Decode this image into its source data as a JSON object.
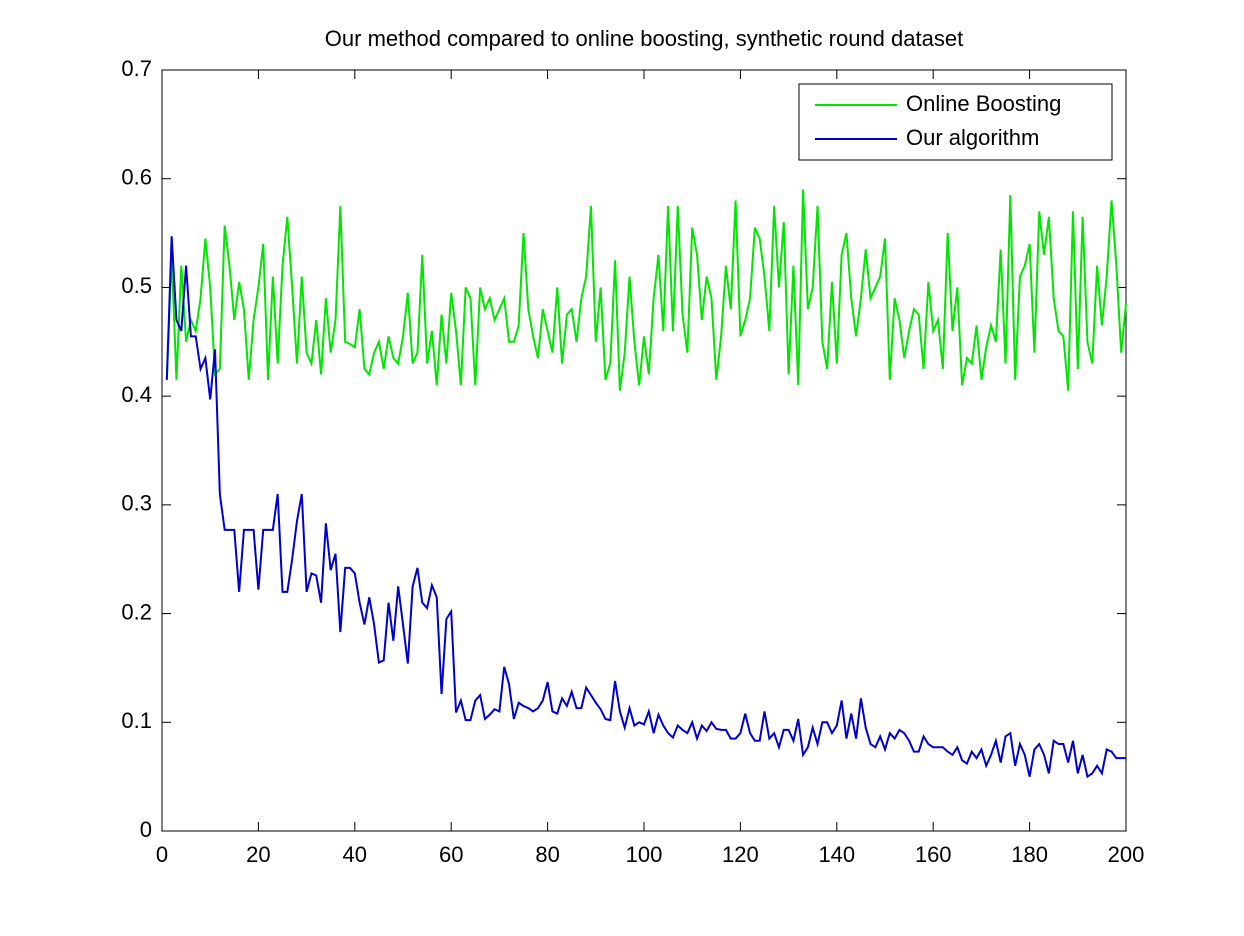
{
  "chart_data": {
    "type": "line",
    "title": "Our method compared to online boosting, synthetic round dataset",
    "x": [
      1,
      2,
      3,
      4,
      5,
      6,
      7,
      8,
      9,
      10,
      11,
      12,
      13,
      14,
      15,
      16,
      17,
      18,
      19,
      20,
      21,
      22,
      23,
      24,
      25,
      26,
      27,
      28,
      29,
      30,
      31,
      32,
      33,
      34,
      35,
      36,
      37,
      38,
      39,
      40,
      41,
      42,
      43,
      44,
      45,
      46,
      47,
      48,
      49,
      50,
      51,
      52,
      53,
      54,
      55,
      56,
      57,
      58,
      59,
      60,
      61,
      62,
      63,
      64,
      65,
      66,
      67,
      68,
      69,
      70,
      71,
      72,
      73,
      74,
      75,
      76,
      77,
      78,
      79,
      80,
      81,
      82,
      83,
      84,
      85,
      86,
      87,
      88,
      89,
      90,
      91,
      92,
      93,
      94,
      95,
      96,
      97,
      98,
      99,
      100,
      101,
      102,
      103,
      104,
      105,
      106,
      107,
      108,
      109,
      110,
      111,
      112,
      113,
      114,
      115,
      116,
      117,
      118,
      119,
      120,
      121,
      122,
      123,
      124,
      125,
      126,
      127,
      128,
      129,
      130,
      131,
      132,
      133,
      134,
      135,
      136,
      137,
      138,
      139,
      140,
      141,
      142,
      143,
      144,
      145,
      146,
      147,
      148,
      149,
      150,
      151,
      152,
      153,
      154,
      155,
      156,
      157,
      158,
      159,
      160,
      161,
      162,
      163,
      164,
      165,
      166,
      167,
      168,
      169,
      170,
      171,
      172,
      173,
      174,
      175,
      176,
      177,
      178,
      179,
      180,
      181,
      182,
      183,
      184,
      185,
      186,
      187,
      188,
      189,
      190,
      191,
      192,
      193,
      194,
      195,
      196,
      197,
      198,
      199,
      200
    ],
    "series": [
      {
        "name": "Online Boosting",
        "color": "#00e600",
        "values": [
          0.415,
          0.53,
          0.415,
          0.52,
          0.45,
          0.47,
          0.46,
          0.49,
          0.545,
          0.5,
          0.42,
          0.425,
          0.557,
          0.52,
          0.47,
          0.505,
          0.48,
          0.415,
          0.47,
          0.5,
          0.54,
          0.415,
          0.51,
          0.43,
          0.52,
          0.565,
          0.5,
          0.43,
          0.51,
          0.44,
          0.43,
          0.47,
          0.42,
          0.49,
          0.44,
          0.47,
          0.575,
          0.45,
          0.448,
          0.445,
          0.48,
          0.425,
          0.42,
          0.44,
          0.45,
          0.425,
          0.455,
          0.435,
          0.43,
          0.455,
          0.495,
          0.43,
          0.44,
          0.53,
          0.43,
          0.46,
          0.41,
          0.475,
          0.43,
          0.495,
          0.46,
          0.41,
          0.5,
          0.49,
          0.41,
          0.5,
          0.48,
          0.49,
          0.47,
          0.48,
          0.49,
          0.45,
          0.45,
          0.465,
          0.55,
          0.48,
          0.455,
          0.435,
          0.48,
          0.46,
          0.44,
          0.5,
          0.43,
          0.475,
          0.48,
          0.45,
          0.49,
          0.51,
          0.575,
          0.45,
          0.5,
          0.415,
          0.43,
          0.525,
          0.405,
          0.44,
          0.51,
          0.45,
          0.41,
          0.455,
          0.42,
          0.49,
          0.53,
          0.46,
          0.575,
          0.46,
          0.575,
          0.475,
          0.44,
          0.555,
          0.53,
          0.47,
          0.51,
          0.49,
          0.415,
          0.455,
          0.52,
          0.48,
          0.58,
          0.455,
          0.47,
          0.49,
          0.555,
          0.545,
          0.51,
          0.46,
          0.575,
          0.5,
          0.56,
          0.42,
          0.52,
          0.41,
          0.59,
          0.48,
          0.5,
          0.575,
          0.45,
          0.425,
          0.505,
          0.43,
          0.53,
          0.55,
          0.49,
          0.455,
          0.49,
          0.535,
          0.49,
          0.5,
          0.51,
          0.545,
          0.415,
          0.49,
          0.47,
          0.435,
          0.46,
          0.48,
          0.475,
          0.425,
          0.505,
          0.46,
          0.47,
          0.425,
          0.55,
          0.46,
          0.5,
          0.41,
          0.435,
          0.43,
          0.465,
          0.415,
          0.445,
          0.465,
          0.45,
          0.535,
          0.43,
          0.585,
          0.415,
          0.51,
          0.52,
          0.54,
          0.44,
          0.57,
          0.53,
          0.565,
          0.49,
          0.46,
          0.455,
          0.405,
          0.57,
          0.425,
          0.565,
          0.45,
          0.43,
          0.52,
          0.465,
          0.51,
          0.58,
          0.52,
          0.44,
          0.485
        ]
      },
      {
        "name": "Our algorithm",
        "color": "#0000cc",
        "values": [
          0.415,
          0.547,
          0.47,
          0.46,
          0.52,
          0.455,
          0.455,
          0.425,
          0.435,
          0.397,
          0.443,
          0.31,
          0.277,
          0.277,
          0.277,
          0.22,
          0.277,
          0.277,
          0.277,
          0.222,
          0.277,
          0.277,
          0.277,
          0.31,
          0.22,
          0.22,
          0.25,
          0.285,
          0.31,
          0.22,
          0.237,
          0.235,
          0.21,
          0.283,
          0.24,
          0.255,
          0.183,
          0.242,
          0.242,
          0.237,
          0.21,
          0.19,
          0.215,
          0.19,
          0.155,
          0.157,
          0.21,
          0.175,
          0.225,
          0.19,
          0.154,
          0.225,
          0.242,
          0.21,
          0.205,
          0.226,
          0.215,
          0.126,
          0.195,
          0.202,
          0.109,
          0.12,
          0.102,
          0.102,
          0.12,
          0.125,
          0.103,
          0.107,
          0.112,
          0.11,
          0.151,
          0.135,
          0.103,
          0.118,
          0.115,
          0.113,
          0.11,
          0.113,
          0.12,
          0.137,
          0.11,
          0.108,
          0.122,
          0.115,
          0.128,
          0.113,
          0.113,
          0.132,
          0.125,
          0.118,
          0.112,
          0.103,
          0.102,
          0.138,
          0.11,
          0.095,
          0.113,
          0.097,
          0.1,
          0.098,
          0.11,
          0.09,
          0.107,
          0.097,
          0.09,
          0.086,
          0.097,
          0.093,
          0.09,
          0.1,
          0.085,
          0.097,
          0.092,
          0.1,
          0.094,
          0.093,
          0.093,
          0.085,
          0.085,
          0.09,
          0.108,
          0.09,
          0.083,
          0.083,
          0.11,
          0.085,
          0.09,
          0.077,
          0.093,
          0.093,
          0.083,
          0.103,
          0.07,
          0.077,
          0.095,
          0.08,
          0.1,
          0.1,
          0.09,
          0.097,
          0.12,
          0.085,
          0.108,
          0.085,
          0.122,
          0.095,
          0.08,
          0.077,
          0.087,
          0.075,
          0.09,
          0.085,
          0.093,
          0.09,
          0.083,
          0.073,
          0.073,
          0.087,
          0.08,
          0.077,
          0.077,
          0.077,
          0.073,
          0.07,
          0.077,
          0.065,
          0.062,
          0.073,
          0.067,
          0.075,
          0.06,
          0.07,
          0.083,
          0.063,
          0.087,
          0.09,
          0.06,
          0.08,
          0.07,
          0.05,
          0.075,
          0.08,
          0.07,
          0.053,
          0.083,
          0.08,
          0.08,
          0.063,
          0.083,
          0.053,
          0.07,
          0.05,
          0.053,
          0.06,
          0.053,
          0.075,
          0.073,
          0.067,
          0.067,
          0.067
        ]
      }
    ],
    "xlim": [
      0,
      200
    ],
    "xticks": [
      0,
      20,
      40,
      60,
      80,
      100,
      120,
      140,
      160,
      180,
      200
    ],
    "ylim": [
      0,
      0.7
    ],
    "yticks": [
      0,
      0.1,
      0.2,
      0.3,
      0.4,
      0.5,
      0.6,
      0.7
    ],
    "legend": "upper right"
  }
}
